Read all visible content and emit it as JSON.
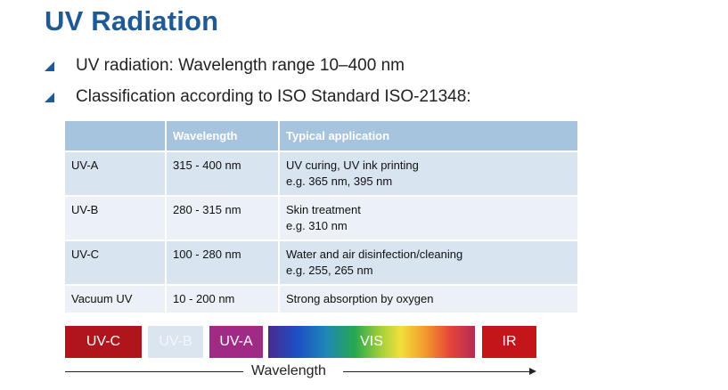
{
  "title": "UV Radiation",
  "bullets": [
    "UV radiation: Wavelength range 10–400 nm",
    "Classification according to ISO Standard ISO-21348:"
  ],
  "table": {
    "headers": [
      "",
      "Wavelength",
      "Typical application"
    ],
    "rows": [
      {
        "name": "UV-A",
        "wavelength": "315 - 400 nm",
        "application": [
          "UV curing, UV ink printing",
          "e.g. 365 nm,  395 nm"
        ]
      },
      {
        "name": "UV-B",
        "wavelength": "280 - 315 nm",
        "application": [
          "Skin treatment",
          "e.g. 310 nm"
        ]
      },
      {
        "name": "UV-C",
        "wavelength": "100 - 280 nm",
        "application": [
          "Water and air disinfection/cleaning",
          "e.g. 255, 265 nm"
        ]
      },
      {
        "name": "Vacuum  UV",
        "wavelength": "10 - 200 nm",
        "application": [
          "Strong absorption by oxygen"
        ]
      }
    ]
  },
  "spectrum": {
    "bands": [
      {
        "label": "UV-C",
        "color": "#b0151b"
      },
      {
        "label": "UV-B",
        "color": "#dbe5f0"
      },
      {
        "label": "UV-A",
        "color": "#a12a86"
      },
      {
        "label": "VIS",
        "color": "gradient"
      },
      {
        "label": "IR",
        "color": "#c4151b"
      }
    ],
    "axis_label": "Wavelength"
  },
  "colors": {
    "title": "#1f5a96",
    "table_header": "#a7c4df",
    "row_odd": "#d8e4f0",
    "row_even": "#ecf1f7"
  }
}
